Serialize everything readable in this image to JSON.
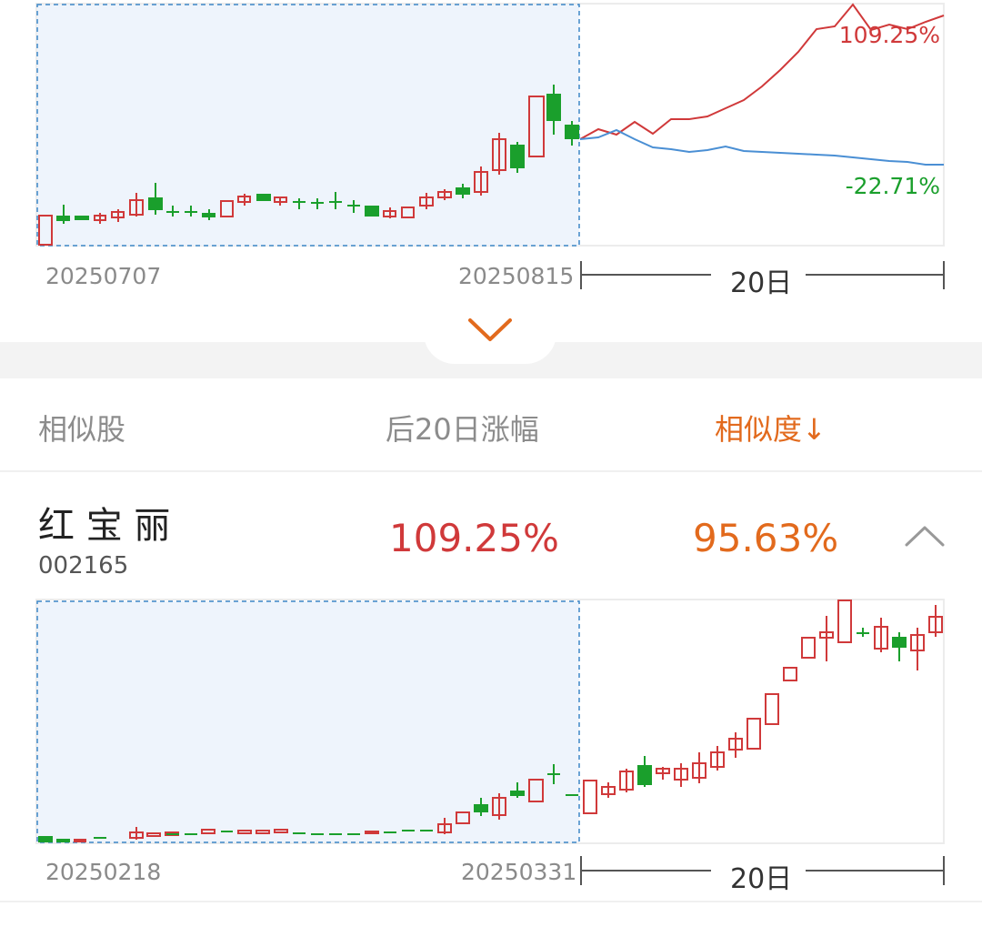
{
  "top_chart": {
    "start_date": "20250707",
    "end_date": "20250815",
    "span_label": "20日",
    "up_label": "109.25%",
    "down_label": "-22.71%",
    "colors": {
      "up": "#d0393a",
      "down": "#1a9f2c",
      "blue_line": "#4a8fd4",
      "highlight_bg": "#eef4fc",
      "highlight_border": "#3d86c6"
    }
  },
  "expand": {
    "icon": "chevron-down-icon",
    "color": "#e26a1d"
  },
  "header": {
    "col_stock": "相似股",
    "col_change": "后20日涨幅",
    "col_similarity": "相似度↓"
  },
  "stocks": [
    {
      "name": "红 宝 丽",
      "code": "002165",
      "change": "109.25%",
      "similarity": "95.63%",
      "collapse_icon": "chevron-up-icon",
      "chart": {
        "start_date": "20250218",
        "end_date": "20250331",
        "span_label": "20日"
      }
    }
  ]
}
